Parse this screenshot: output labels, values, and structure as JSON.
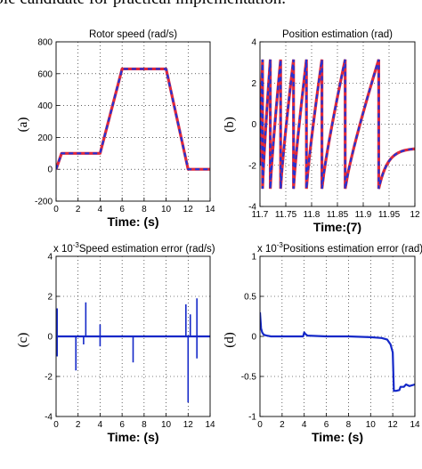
{
  "caption_fragment": "able candidate for practical implementation.",
  "colors": {
    "line_a": "#e0293b",
    "line_b": "#2233d6",
    "error": "#1428c8",
    "grid": "#000000"
  },
  "chart_data": [
    {
      "type": "line",
      "title": "Rotor speed (rad/s)",
      "xlabel": "Time: (s)",
      "panel_label": "(a)",
      "xlim": [
        0,
        14
      ],
      "ylim": [
        -200,
        800
      ],
      "xticks": [
        "0",
        "2",
        "4",
        "6",
        "8",
        "10",
        "12",
        "14"
      ],
      "yticks": [
        "-200",
        "0",
        "200",
        "400",
        "600",
        "800"
      ],
      "grid": true,
      "series": [
        {
          "x": [
            0,
            0.5,
            4,
            6,
            10,
            12,
            14
          ],
          "y": [
            0,
            100,
            100,
            630,
            630,
            0,
            0
          ]
        },
        {
          "x": [
            0,
            0.5,
            4,
            6,
            10,
            12,
            14
          ],
          "y": [
            0,
            100,
            100,
            630,
            630,
            0,
            0
          ]
        }
      ]
    },
    {
      "type": "line",
      "title": "Position estimation (rad)",
      "xlabel": "Time:(7)",
      "panel_label": "(b)",
      "xlim": [
        11.7,
        12
      ],
      "ylim": [
        -4,
        4
      ],
      "xticks": [
        "11.7",
        "11.75",
        "11.8",
        "11.85",
        "11.9",
        "11.95",
        "12"
      ],
      "yticks": [
        "-4",
        "-2",
        "0",
        "2",
        "4"
      ],
      "grid": true,
      "wraps": [
        11.705,
        11.72,
        11.74,
        11.765,
        11.79,
        11.82,
        11.865,
        11.93
      ],
      "tail_end_value": -1.2
    },
    {
      "type": "line",
      "title": "Speed estimation error (rad/s)",
      "scale_label": "x 10",
      "scale_exponent": "-3",
      "xlabel": "Time: (s)",
      "panel_label": "(c)",
      "xlim": [
        0,
        14
      ],
      "ylim": [
        -4,
        4
      ],
      "xticks": [
        "0",
        "2",
        "4",
        "6",
        "8",
        "10",
        "12",
        "14"
      ],
      "yticks": [
        "-4",
        "-2",
        "0",
        "2",
        "4"
      ],
      "grid": true,
      "spikes": [
        {
          "x": 0.1,
          "peaks": [
            1.4,
            -1.0
          ]
        },
        {
          "x": 1.8,
          "peaks": [
            -1.7
          ]
        },
        {
          "x": 2.5,
          "peaks": [
            -0.4
          ]
        },
        {
          "x": 2.7,
          "peaks": [
            1.7
          ]
        },
        {
          "x": 4.0,
          "peaks": [
            0.6,
            -0.5
          ]
        },
        {
          "x": 7.0,
          "peaks": [
            -1.3
          ]
        },
        {
          "x": 11.8,
          "peaks": [
            1.6
          ]
        },
        {
          "x": 12.0,
          "peaks": [
            -3.3
          ]
        },
        {
          "x": 12.2,
          "peaks": [
            1.1
          ]
        },
        {
          "x": 12.8,
          "peaks": [
            1.9,
            -1.1
          ]
        }
      ]
    },
    {
      "type": "line",
      "title": "Positions estimation error (rad)",
      "scale_label": "x 10",
      "scale_exponent": "-3",
      "xlabel": "Time: (s)",
      "panel_label": "(d)",
      "xlim": [
        0,
        14
      ],
      "ylim": [
        -1,
        1
      ],
      "xticks": [
        "0",
        "2",
        "4",
        "6",
        "8",
        "10",
        "12",
        "14"
      ],
      "yticks": [
        "-1",
        "-0.5",
        "0",
        "0.5",
        "1"
      ],
      "grid": true,
      "series": [
        {
          "x": [
            0,
            0.1,
            0.2,
            0.35,
            0.6,
            1.0,
            2.0,
            3.9,
            4.0,
            4.1,
            4.3,
            6.0,
            8.0,
            10.0,
            11.0,
            11.5,
            11.8,
            12.0,
            12.1,
            12.3,
            12.6,
            12.7,
            13.0,
            13.2,
            13.5,
            14.0
          ],
          "y": [
            0.3,
            0.1,
            0.05,
            0.02,
            0.01,
            0.0,
            0.0,
            0.0,
            0.05,
            0.03,
            0.01,
            0.0,
            0.0,
            -0.01,
            -0.02,
            -0.04,
            -0.1,
            -0.2,
            -0.68,
            -0.68,
            -0.67,
            -0.63,
            -0.63,
            -0.6,
            -0.62,
            -0.6
          ]
        }
      ]
    }
  ]
}
